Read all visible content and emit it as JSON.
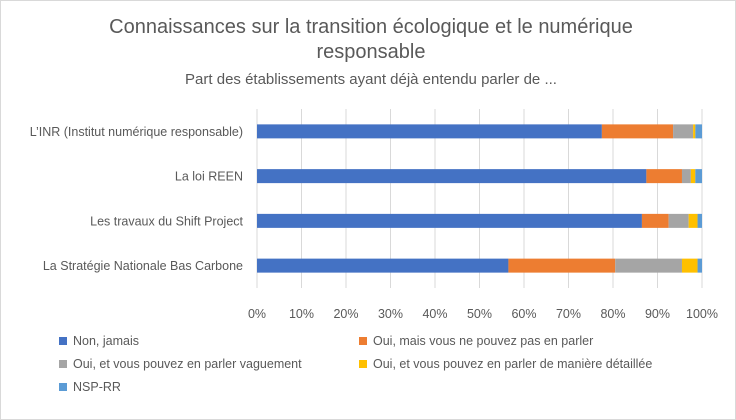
{
  "chart_data": {
    "type": "bar",
    "orientation": "horizontal",
    "stacked": "percent",
    "title": "Connaissances sur la transition écologique et le numérique responsable",
    "subtitle": "Part des établissements ayant déjà entendu parler de ...",
    "categories": [
      "L’INR (Institut numérique responsable)",
      "La loi REEN",
      "Les travaux du Shift Project",
      "La Stratégie Nationale Bas Carbone"
    ],
    "series": [
      {
        "name": "Non, jamais",
        "color": "#4472C4",
        "values": [
          77.5,
          87.5,
          86.5,
          56.5
        ]
      },
      {
        "name": "Oui, mais vous ne pouvez pas en parler",
        "color": "#ED7D31",
        "values": [
          16,
          8,
          6,
          24
        ]
      },
      {
        "name": "Oui, et vous pouvez en parler vaguement",
        "color": "#A5A5A5",
        "values": [
          4.5,
          2,
          4.5,
          15
        ]
      },
      {
        "name": "Oui, et vous pouvez en parler de manière détaillée",
        "color": "#FFC000",
        "values": [
          0.5,
          1,
          2,
          3.5
        ]
      },
      {
        "name": "NSP-RR",
        "color": "#5B9BD5",
        "values": [
          1.5,
          1.5,
          1,
          1
        ]
      }
    ],
    "x_ticks": [
      "0%",
      "10%",
      "20%",
      "30%",
      "40%",
      "50%",
      "60%",
      "70%",
      "80%",
      "90%",
      "100%"
    ],
    "xlim": [
      0,
      100
    ],
    "grid": "vertical",
    "legend_position": "bottom"
  }
}
